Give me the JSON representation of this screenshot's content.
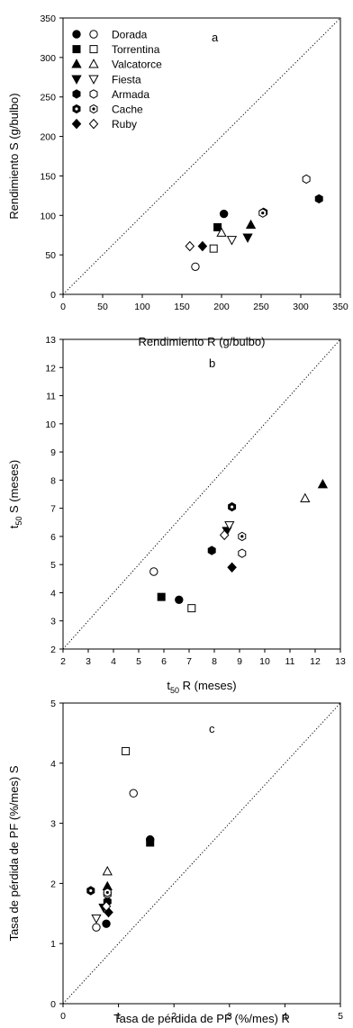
{
  "chart_data": [
    {
      "type": "scatter",
      "panel_label": "a",
      "xlabel": "Rendimiento R (g/bulbo)",
      "ylabel": "Rendimiento S (g/bulbo)",
      "xlim": [
        0,
        350
      ],
      "ylim": [
        0,
        350
      ],
      "xticks": [
        0,
        50,
        100,
        150,
        200,
        250,
        300,
        350
      ],
      "yticks": [
        0,
        50,
        100,
        150,
        200,
        250,
        300,
        350
      ],
      "identity_line": true,
      "legend": {
        "placement": "top-left",
        "entries": [
          {
            "label": "Dorada",
            "shape": "circle"
          },
          {
            "label": "Torrentina",
            "shape": "square"
          },
          {
            "label": "Valcatorce",
            "shape": "triangle-up"
          },
          {
            "label": "Fiesta",
            "shape": "triangle-down"
          },
          {
            "label": "Armada",
            "shape": "hexagon"
          },
          {
            "label": "Cache",
            "shape": "hexagon-dot"
          },
          {
            "label": "Ruby",
            "shape": "diamond"
          }
        ]
      },
      "series": [
        {
          "name": "Dorada",
          "shape": "circle",
          "filled": true,
          "points": [
            [
              203,
              102
            ]
          ]
        },
        {
          "name": "Dorada",
          "shape": "circle",
          "filled": false,
          "points": [
            [
              167,
              35
            ]
          ]
        },
        {
          "name": "Torrentina",
          "shape": "square",
          "filled": true,
          "points": [
            [
              195,
              85
            ]
          ]
        },
        {
          "name": "Torrentina",
          "shape": "square",
          "filled": false,
          "points": [
            [
              190,
              58
            ]
          ]
        },
        {
          "name": "Valcatorce",
          "shape": "triangle-up",
          "filled": true,
          "points": [
            [
              237,
              88
            ]
          ]
        },
        {
          "name": "Valcatorce",
          "shape": "triangle-up",
          "filled": false,
          "points": [
            [
              200,
              78
            ]
          ]
        },
        {
          "name": "Fiesta",
          "shape": "triangle-down",
          "filled": true,
          "points": [
            [
              233,
              72
            ]
          ]
        },
        {
          "name": "Fiesta",
          "shape": "triangle-down",
          "filled": false,
          "points": [
            [
              213,
              69
            ]
          ]
        },
        {
          "name": "Armada",
          "shape": "hexagon",
          "filled": true,
          "points": [
            [
              323,
              121
            ]
          ]
        },
        {
          "name": "Armada",
          "shape": "hexagon",
          "filled": false,
          "points": [
            [
              307,
              146
            ]
          ]
        },
        {
          "name": "Cache",
          "shape": "hexagon-dot",
          "filled": true,
          "points": [
            [
              253,
              104
            ]
          ]
        },
        {
          "name": "Cache",
          "shape": "hexagon-dot",
          "filled": false,
          "points": [
            [
              252,
              103
            ]
          ]
        },
        {
          "name": "Ruby",
          "shape": "diamond",
          "filled": true,
          "points": [
            [
              176,
              61
            ]
          ]
        },
        {
          "name": "Ruby",
          "shape": "diamond",
          "filled": false,
          "points": [
            [
              160,
              61
            ]
          ]
        }
      ]
    },
    {
      "type": "scatter",
      "panel_label": "b",
      "xlabel": "t50 R (meses)",
      "ylabel": "t50 S (meses)",
      "xlim": [
        2,
        13
      ],
      "ylim": [
        2,
        13
      ],
      "xticks": [
        2,
        3,
        4,
        5,
        6,
        7,
        8,
        9,
        10,
        11,
        12,
        13
      ],
      "yticks": [
        2,
        3,
        4,
        5,
        6,
        7,
        8,
        9,
        10,
        11,
        12,
        13
      ],
      "identity_line": true,
      "series": [
        {
          "name": "Dorada",
          "shape": "circle",
          "filled": true,
          "points": [
            [
              6.6,
              3.75
            ]
          ]
        },
        {
          "name": "Dorada",
          "shape": "circle",
          "filled": false,
          "points": [
            [
              5.6,
              4.75
            ]
          ]
        },
        {
          "name": "Torrentina",
          "shape": "square",
          "filled": true,
          "points": [
            [
              5.9,
              3.85
            ]
          ]
        },
        {
          "name": "Torrentina",
          "shape": "square",
          "filled": false,
          "points": [
            [
              7.1,
              3.45
            ]
          ]
        },
        {
          "name": "Valcatorce",
          "shape": "triangle-up",
          "filled": true,
          "points": [
            [
              12.3,
              7.85
            ]
          ]
        },
        {
          "name": "Valcatorce",
          "shape": "triangle-up",
          "filled": false,
          "points": [
            [
              11.6,
              7.35
            ]
          ]
        },
        {
          "name": "Fiesta",
          "shape": "triangle-down",
          "filled": true,
          "points": [
            [
              8.5,
              6.2
            ]
          ]
        },
        {
          "name": "Fiesta",
          "shape": "triangle-down",
          "filled": false,
          "points": [
            [
              8.6,
              6.4
            ]
          ]
        },
        {
          "name": "Armada",
          "shape": "hexagon",
          "filled": true,
          "points": [
            [
              7.9,
              5.5
            ]
          ]
        },
        {
          "name": "Armada",
          "shape": "hexagon",
          "filled": false,
          "points": [
            [
              9.1,
              5.4
            ]
          ]
        },
        {
          "name": "Cache",
          "shape": "hexagon-dot",
          "filled": true,
          "points": [
            [
              8.7,
              7.05
            ]
          ]
        },
        {
          "name": "Cache",
          "shape": "hexagon-dot",
          "filled": false,
          "points": [
            [
              9.1,
              6.0
            ]
          ]
        },
        {
          "name": "Ruby",
          "shape": "diamond",
          "filled": true,
          "points": [
            [
              8.7,
              4.9
            ]
          ]
        },
        {
          "name": "Ruby",
          "shape": "diamond",
          "filled": false,
          "points": [
            [
              8.4,
              6.05
            ]
          ]
        }
      ]
    },
    {
      "type": "scatter",
      "panel_label": "c",
      "xlabel": "Tasa de pérdida de PF (%/mes) R",
      "ylabel": "Tasa de pérdida de PF (%/mes) S",
      "xlim": [
        0,
        5
      ],
      "ylim": [
        0,
        5
      ],
      "xticks": [
        0,
        1,
        2,
        3,
        4,
        5
      ],
      "yticks": [
        0,
        1,
        2,
        3,
        4,
        5
      ],
      "identity_line": true,
      "series": [
        {
          "name": "Dorada",
          "shape": "circle",
          "filled": true,
          "points": [
            [
              0.78,
              1.33
            ],
            [
              1.57,
              2.73
            ]
          ]
        },
        {
          "name": "Dorada",
          "shape": "circle",
          "filled": false,
          "points": [
            [
              0.6,
              1.27
            ],
            [
              1.27,
              3.5
            ]
          ]
        },
        {
          "name": "Torrentina",
          "shape": "square",
          "filled": true,
          "points": [
            [
              1.57,
              2.68
            ]
          ]
        },
        {
          "name": "Torrentina",
          "shape": "square",
          "filled": false,
          "points": [
            [
              1.13,
              4.2
            ]
          ]
        },
        {
          "name": "Valcatorce",
          "shape": "triangle-up",
          "filled": true,
          "points": [
            [
              0.8,
              1.95
            ]
          ]
        },
        {
          "name": "Valcatorce",
          "shape": "triangle-up",
          "filled": false,
          "points": [
            [
              0.8,
              2.2
            ]
          ]
        },
        {
          "name": "Fiesta",
          "shape": "triangle-down",
          "filled": true,
          "points": [
            [
              0.73,
              1.6
            ]
          ]
        },
        {
          "name": "Fiesta",
          "shape": "triangle-down",
          "filled": false,
          "points": [
            [
              0.6,
              1.42
            ]
          ]
        },
        {
          "name": "Armada",
          "shape": "hexagon",
          "filled": true,
          "points": [
            [
              0.8,
              1.7
            ]
          ]
        },
        {
          "name": "Armada",
          "shape": "hexagon",
          "filled": false,
          "points": [
            [
              0.8,
              1.82
            ]
          ]
        },
        {
          "name": "Cache",
          "shape": "hexagon-dot",
          "filled": true,
          "points": [
            [
              0.5,
              1.88
            ]
          ]
        },
        {
          "name": "Cache",
          "shape": "hexagon-dot",
          "filled": false,
          "points": [
            [
              0.8,
              1.85
            ]
          ]
        },
        {
          "name": "Ruby",
          "shape": "diamond",
          "filled": true,
          "points": [
            [
              0.82,
              1.52
            ]
          ]
        },
        {
          "name": "Ruby",
          "shape": "diamond",
          "filled": false,
          "points": [
            [
              0.78,
              1.62
            ]
          ]
        }
      ]
    }
  ]
}
